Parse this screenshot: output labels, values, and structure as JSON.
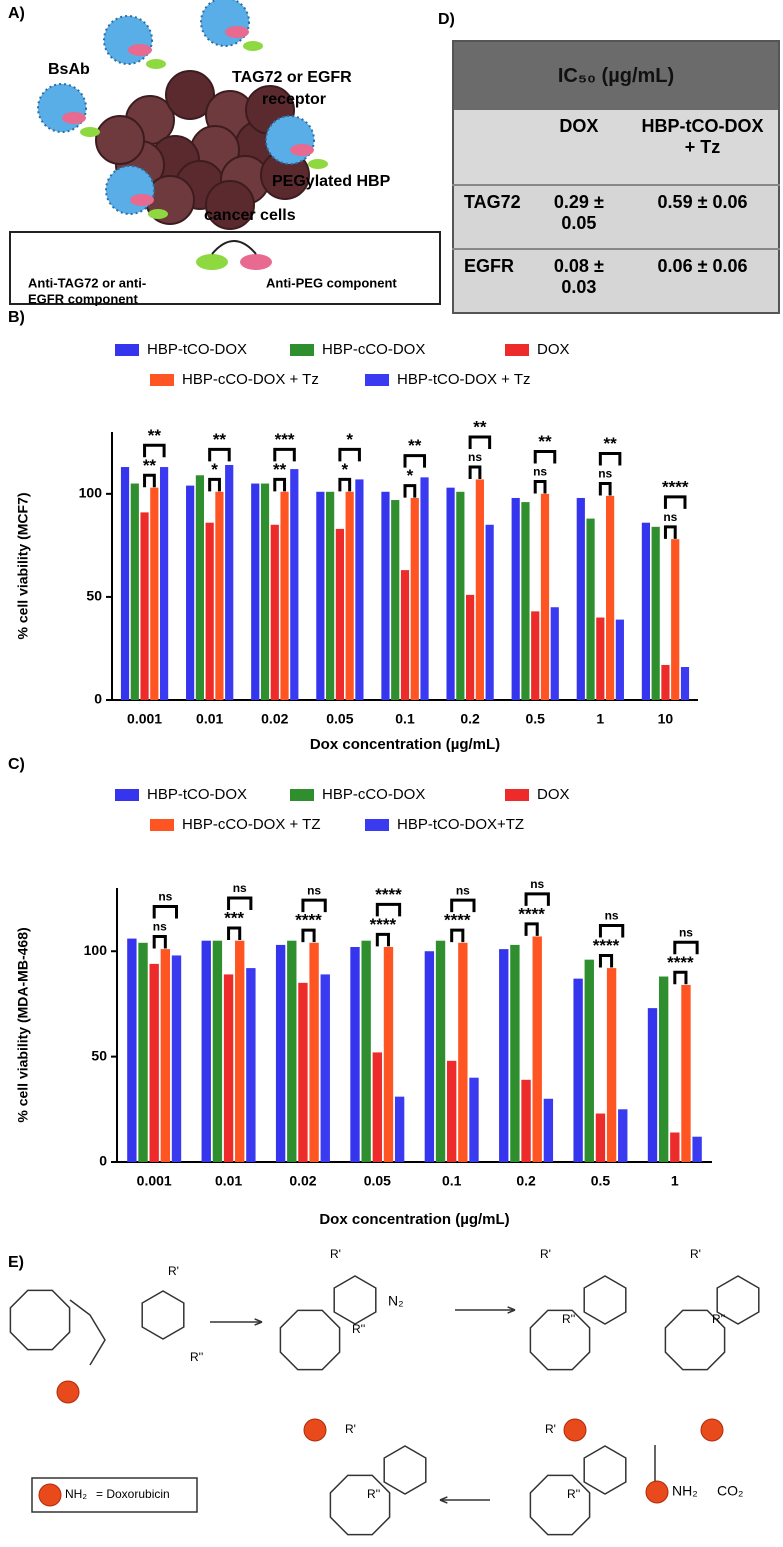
{
  "panel_labels": {
    "a": "A)",
    "b": "B)",
    "c": "C)",
    "d": "D)",
    "e": "E)"
  },
  "panel_a": {
    "bsab": "BsAb",
    "receptor_1": "TAG72 or EGFR",
    "receptor_2": "receptor",
    "hbp": "PEGylated HBP",
    "cells": "cancer cells",
    "anti_tag_1": "Anti-TAG72  or anti-",
    "anti_tag_2": "EGFR component",
    "anti_peg": "Anti-PEG  component"
  },
  "table": {
    "title": "IC₅₀ (µg/mL)",
    "columns": [
      "DOX",
      "HBP-tCO-DOX + Tz"
    ],
    "rows": [
      [
        "TAG72",
        "0.29 ± 0.05",
        "0.59 ± 0.06"
      ],
      [
        "EGFR",
        "0.08 ± 0.03",
        "0.06 ± 0.06"
      ]
    ]
  },
  "scheme": {
    "n2": "N₂",
    "nh2": "NH₂",
    "co2": "CO₂",
    "r1": "R'",
    "r2": "R''",
    "legend_text": "= Doxorubicin"
  },
  "chart_data": [
    {
      "type": "bar",
      "y_label": "% cell viability (MCF7)",
      "x_label": "Dox concentration (µg/mL)",
      "categories": [
        "0.001",
        "0.01",
        "0.02",
        "0.05",
        "0.1",
        "0.2",
        "0.5",
        "1",
        "10"
      ],
      "ylim": [
        0,
        130
      ],
      "yticks": [
        0,
        50,
        100
      ],
      "series": [
        {
          "name": "HBP-tCO-DOX",
          "color": "#3535ee",
          "values": [
            113,
            104,
            105,
            101,
            101,
            103,
            98,
            98,
            86
          ]
        },
        {
          "name": "HBP-cCO-DOX",
          "color": "#2f8f2f",
          "values": [
            105,
            109,
            105,
            101,
            97,
            101,
            96,
            88,
            84
          ]
        },
        {
          "name": "DOX",
          "color": "#ee2b2b",
          "values": [
            91,
            86,
            85,
            83,
            63,
            51,
            43,
            40,
            17
          ]
        },
        {
          "name": "HBP-cCO-DOX + Tz",
          "color": "#ff5522",
          "values": [
            103,
            101,
            101,
            101,
            98,
            107,
            100,
            99,
            78
          ]
        },
        {
          "name": "HBP-tCO-DOX + Tz",
          "color": "#3a3af0",
          "values": [
            113,
            114,
            112,
            107,
            108,
            85,
            45,
            39,
            16
          ]
        }
      ],
      "annotations": [
        {
          "upper": "**",
          "lower": "**"
        },
        {
          "upper": "**",
          "lower": "*"
        },
        {
          "upper": "***",
          "lower": "**"
        },
        {
          "upper": "*",
          "lower": "*"
        },
        {
          "upper": "**",
          "lower": "*"
        },
        {
          "upper": "**",
          "lower": "ns"
        },
        {
          "upper": "**",
          "lower": "ns"
        },
        {
          "upper": "**",
          "lower": "ns"
        },
        {
          "upper": "****",
          "lower": "ns"
        }
      ]
    },
    {
      "type": "bar",
      "y_label": "% cell viability (MDA-MB-468)",
      "x_label": "Dox concentration (µg/mL)",
      "categories": [
        "0.001",
        "0.01",
        "0.02",
        "0.05",
        "0.1",
        "0.2",
        "0.5",
        "1"
      ],
      "ylim": [
        0,
        130
      ],
      "yticks": [
        0,
        50,
        100
      ],
      "series": [
        {
          "name": "HBP-tCO-DOX",
          "color": "#3535ee",
          "values": [
            106,
            105,
            103,
            102,
            100,
            101,
            87,
            73
          ]
        },
        {
          "name": "HBP-cCO-DOX",
          "color": "#2f8f2f",
          "values": [
            104,
            105,
            105,
            105,
            105,
            103,
            96,
            88
          ]
        },
        {
          "name": "DOX",
          "color": "#ee2b2b",
          "values": [
            94,
            89,
            85,
            52,
            48,
            39,
            23,
            14
          ]
        },
        {
          "name": "HBP-cCO-DOX + TZ",
          "color": "#ff5522",
          "values": [
            101,
            105,
            104,
            102,
            104,
            107,
            92,
            84
          ]
        },
        {
          "name": "HBP-tCO-DOX+TZ",
          "color": "#3a3af0",
          "values": [
            98,
            92,
            89,
            31,
            40,
            30,
            25,
            12
          ]
        }
      ],
      "annotations": [
        {
          "upper": "ns",
          "lower": "ns"
        },
        {
          "upper": "ns",
          "lower": "***"
        },
        {
          "upper": "ns",
          "lower": "****"
        },
        {
          "upper": "****",
          "lower": "****"
        },
        {
          "upper": "ns",
          "lower": "****"
        },
        {
          "upper": "ns",
          "lower": "****"
        },
        {
          "upper": "ns",
          "lower": "****"
        },
        {
          "upper": "ns",
          "lower": "****"
        }
      ]
    }
  ]
}
